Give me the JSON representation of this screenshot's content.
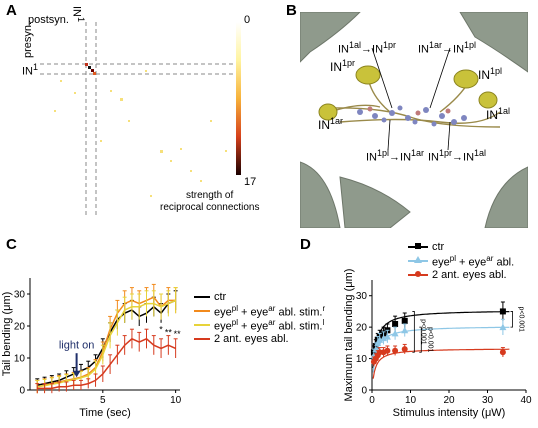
{
  "panels": {
    "A": {
      "letter": "A",
      "postsyn_label": "postsyn.",
      "presyn_label": "presyn.",
      "col_label": "IN",
      "col_label_sup": "1",
      "row_label": "IN",
      "row_label_sup": "1",
      "colorbar": {
        "max_label": "0",
        "min_label": "17",
        "caption_line1": "strength of",
        "caption_line2": "reciprocal connections"
      }
    },
    "B": {
      "letter": "B",
      "labels": [
        {
          "base": "IN",
          "sup": "1al",
          "arrow": "→",
          "base2": "IN",
          "sup2": "1pr"
        },
        {
          "base": "IN",
          "sup": "1ar",
          "arrow": "→",
          "base2": "IN",
          "sup2": "1pl"
        },
        {
          "base": "IN",
          "sup": "1pr"
        },
        {
          "base": "IN",
          "sup": "1pl"
        },
        {
          "base": "IN",
          "sup": "1ar"
        },
        {
          "base": "IN",
          "sup": "1al"
        },
        {
          "base": "IN",
          "sup": "1pl",
          "arrow": "→",
          "base2": "IN",
          "sup2": "1ar"
        },
        {
          "base": "IN",
          "sup": "1pr",
          "arrow": "→",
          "base2": "IN",
          "sup2": "1al"
        }
      ]
    },
    "C": {
      "letter": "C",
      "annotation": "light on",
      "stars_a": "*",
      "stars_b": "**",
      "stars_c": "**"
    },
    "D": {
      "letter": "D",
      "pvalues": [
        "p<0.001",
        "p<0.001",
        "p<0.001"
      ]
    }
  },
  "chart_data": [
    {
      "panel": "C",
      "type": "line",
      "xlabel": "Time (sec)",
      "ylabel": "Tail bending (μm)",
      "xlim": [
        0,
        10.3
      ],
      "ylim": [
        0,
        35
      ],
      "xticks": [
        5,
        10
      ],
      "yticks": [
        0,
        10,
        20,
        30
      ],
      "grid": false,
      "legend_position": "right",
      "legend": [
        {
          "base": "ctr",
          "sup": "",
          "suffix": ""
        },
        {
          "base": "eye",
          "sup": "pl",
          "mid": " + eye",
          "sup2": "ar",
          "suffix": " abl. stim.",
          "sup3": "r"
        },
        {
          "base": "eye",
          "sup": "pl",
          "mid": " + eye",
          "sup2": "ar",
          "suffix": " abl. stim.",
          "sup3": "l"
        },
        {
          "base": "2 ant. eyes abl.",
          "sup": "",
          "suffix": ""
        }
      ],
      "x": [
        0.5,
        1,
        1.5,
        2,
        2.5,
        3,
        3.5,
        4,
        4.5,
        5,
        5.5,
        6,
        6.5,
        7,
        7.5,
        8,
        8.5,
        9,
        9.5,
        10
      ],
      "series": [
        {
          "name": "ctr",
          "color": "#000000",
          "values": [
            1.5,
            2,
            2.5,
            3,
            4,
            5,
            6,
            7,
            9,
            13,
            18,
            22,
            24,
            25,
            23,
            24,
            26,
            24,
            27,
            28
          ],
          "errors": [
            2,
            2,
            2,
            2,
            2,
            2,
            2,
            2,
            2,
            3,
            3,
            3,
            3,
            3,
            3,
            3,
            3,
            3,
            3,
            3
          ]
        },
        {
          "name": "eyepl + eyear abl. stim.r",
          "color": "#f28a1c",
          "values": [
            1,
            1.5,
            2,
            2.5,
            3,
            3.5,
            4,
            5,
            7,
            12,
            19,
            24,
            27,
            28,
            27,
            28,
            29,
            26,
            28,
            28
          ],
          "errors": [
            2,
            2,
            2,
            2,
            2,
            2,
            2,
            2,
            2.5,
            3,
            4,
            4,
            4,
            4,
            4,
            4,
            4,
            4,
            4,
            4
          ]
        },
        {
          "name": "eyepl + eyear abl. stim.l",
          "color": "#e7d33a",
          "values": [
            1,
            1.3,
            1.8,
            2.2,
            2.8,
            3.2,
            3.8,
            4.5,
            6.5,
            11,
            17,
            21,
            25,
            26,
            26,
            27,
            27,
            26,
            27,
            28
          ],
          "errors": [
            2,
            2,
            2,
            2,
            2,
            2,
            2,
            2,
            2.5,
            3,
            4,
            4,
            4,
            4,
            4,
            4,
            4,
            4,
            4,
            4
          ]
        },
        {
          "name": "2 ant. eyes abl.",
          "color": "#d63a1e",
          "values": [
            0.5,
            0.5,
            0.5,
            1,
            1,
            1.5,
            1.5,
            2,
            3,
            5,
            8,
            11,
            14,
            16,
            15,
            16,
            14,
            13,
            14,
            13
          ],
          "errors": [
            1.5,
            1.5,
            1.5,
            1.5,
            1.5,
            1.5,
            1.5,
            1.5,
            2,
            2.5,
            3,
            3,
            3,
            3,
            3,
            3,
            3,
            3,
            3,
            3
          ]
        }
      ]
    },
    {
      "panel": "D",
      "type": "scatter",
      "xlabel": "Stimulus intensity (μW)",
      "ylabel": "Maximum tail bending (μm)",
      "xlim": [
        0,
        40
      ],
      "ylim": [
        0,
        35
      ],
      "xticks": [
        0,
        10,
        20,
        30,
        40
      ],
      "yticks": [
        0,
        10,
        20,
        30
      ],
      "grid": false,
      "legend_position": "top-right",
      "legend": [
        {
          "base": "ctr",
          "sup": "",
          "suffix": ""
        },
        {
          "base": "eye",
          "sup": "pl",
          "mid": " + eye",
          "sup2": "ar",
          "suffix": " abl."
        },
        {
          "base": "2 ant. eyes abl.",
          "sup": "",
          "suffix": ""
        }
      ],
      "x": [
        0.5,
        1,
        1.5,
        2,
        3,
        4,
        6,
        8.5,
        34
      ],
      "series": [
        {
          "name": "ctr",
          "color": "#000000",
          "marker": "square",
          "values": [
            12,
            14,
            16,
            17,
            18,
            19,
            21,
            22,
            25
          ],
          "errors": [
            2,
            2,
            2,
            2,
            2,
            2,
            2.5,
            2.5,
            3
          ]
        },
        {
          "name": "eyepl + eyear abl.",
          "color": "#8ec7e6",
          "marker": "triangle",
          "values": [
            11,
            13,
            15,
            16,
            16.5,
            17,
            18,
            19,
            20
          ],
          "errors": [
            2,
            2,
            2,
            2,
            2,
            2,
            2,
            2,
            2.5
          ]
        },
        {
          "name": "2 ant. eyes abl.",
          "color": "#d63a1e",
          "marker": "circle",
          "values": [
            9,
            10,
            11,
            12,
            12,
            12.5,
            12.5,
            13,
            12
          ],
          "errors": [
            1.5,
            1.5,
            1.5,
            1.5,
            1.5,
            1.5,
            1.5,
            1.5,
            1.5
          ]
        }
      ]
    }
  ]
}
